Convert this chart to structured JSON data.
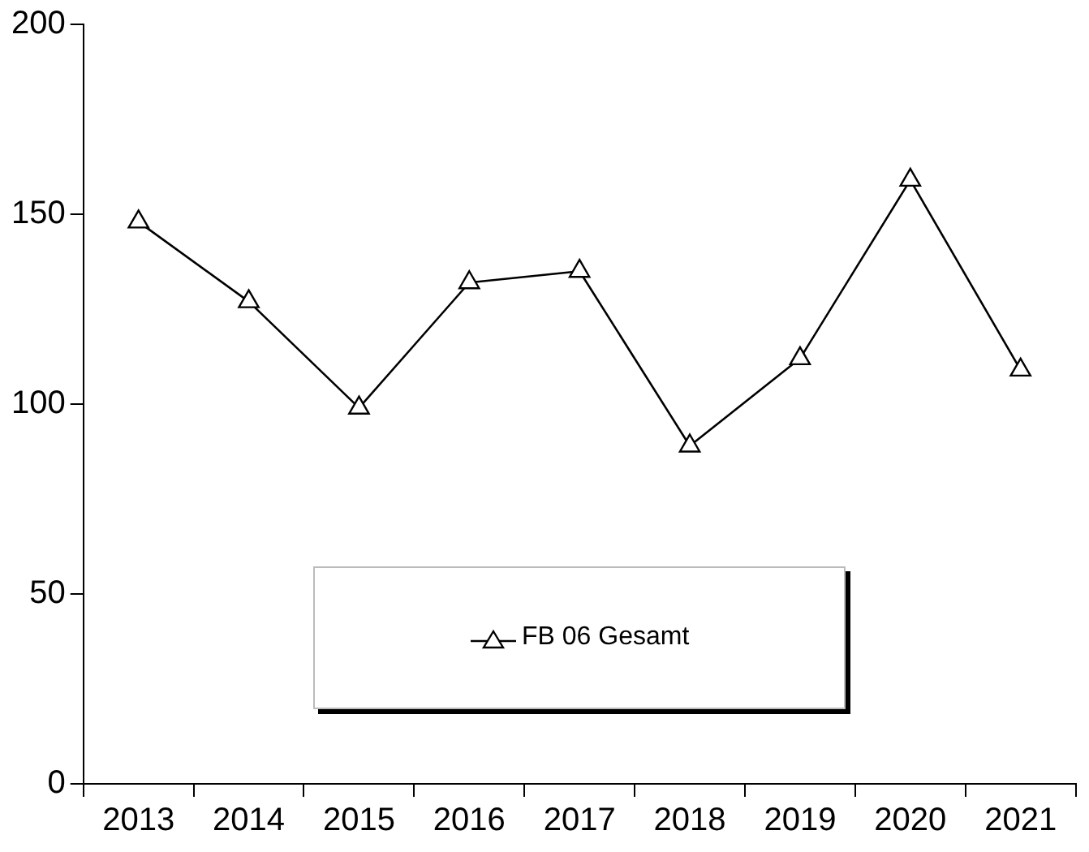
{
  "chart_data": {
    "type": "line",
    "categories": [
      "2013",
      "2014",
      "2015",
      "2016",
      "2017",
      "2018",
      "2019",
      "2020",
      "2021"
    ],
    "series": [
      {
        "name": "FB 06 Gesamt",
        "color": "#000000",
        "values": [
          148,
          127,
          99,
          132,
          135,
          89,
          112,
          159,
          109
        ]
      }
    ],
    "ylim": [
      0,
      200
    ],
    "yticks": [
      0,
      50,
      100,
      150,
      200
    ],
    "grid": false,
    "legend": "bottom",
    "marker": "triangle",
    "line_style": "solid"
  }
}
